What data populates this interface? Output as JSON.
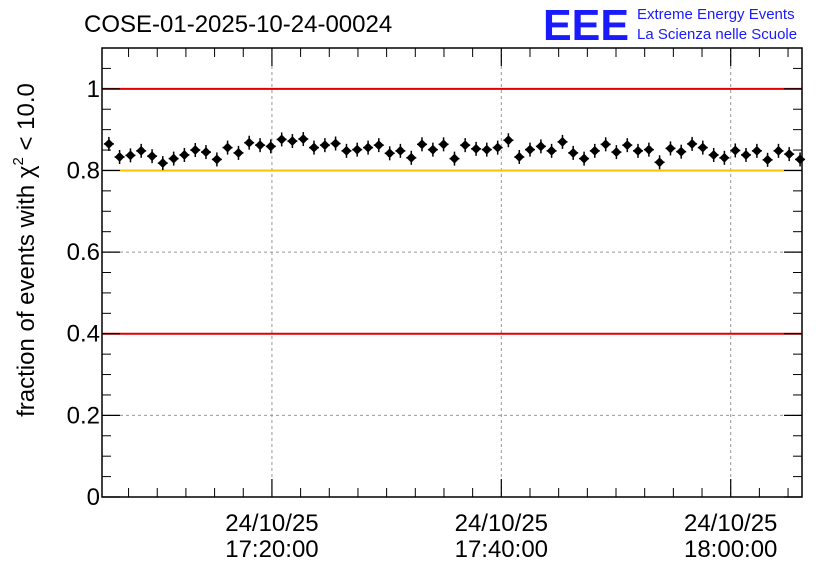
{
  "header": {
    "run_title": "COSE-01-2025-10-24-00024",
    "logo_letters": "EEE",
    "logo_line1": "Extreme Energy Events",
    "logo_line2": "La Scienza nelle Scuole"
  },
  "chart_data": {
    "type": "scatter",
    "title": "COSE-01-2025-10-24-00024",
    "ylabel_main": "fraction of events with χ",
    "ylabel_sup": "2",
    "ylabel_tail": " < 10.0",
    "ylim": [
      0,
      1.1
    ],
    "yticks": [
      0,
      0.2,
      0.4,
      0.6,
      0.8,
      1
    ],
    "ytick_labels": [
      "0",
      "0.2",
      "0.4",
      "0.6",
      "0.8",
      "1"
    ],
    "xlim": [
      "24/10/25 17:05:11",
      "24/10/25 18:06:13"
    ],
    "xticks": [
      {
        "time": "24/10/25 17:20:00",
        "line1": "24/10/25",
        "line2": "17:20:00"
      },
      {
        "time": "24/10/25 17:40:00",
        "line1": "24/10/25",
        "line2": "17:40:00"
      },
      {
        "time": "24/10/25 18:00:00",
        "line1": "24/10/25",
        "line2": "18:00:00"
      }
    ],
    "grid": true,
    "reference_lines": [
      {
        "y": 1.0,
        "color": "#e00000"
      },
      {
        "y": 0.8,
        "color": "#ffc000"
      },
      {
        "y": 0.4,
        "color": "#e00000"
      }
    ],
    "marker_color": "#000000",
    "series": [
      {
        "x": [
          "17:05:47",
          "17:06:43",
          "17:07:40",
          "17:08:36",
          "17:09:33",
          "17:10:29",
          "17:11:26",
          "17:12:22",
          "17:13:19",
          "17:14:15",
          "17:15:12",
          "17:16:08",
          "17:17:05",
          "17:18:01",
          "17:18:58",
          "17:19:54",
          "17:20:51",
          "17:21:47",
          "17:22:44",
          "17:23:40",
          "17:24:37",
          "17:25:33",
          "17:26:30",
          "17:27:26",
          "17:28:23",
          "17:29:19",
          "17:30:16",
          "17:31:12",
          "17:32:09",
          "17:33:05",
          "17:34:02",
          "17:34:58",
          "17:35:55",
          "17:36:51",
          "17:37:48",
          "17:38:44",
          "17:39:41",
          "17:40:37",
          "17:41:34",
          "17:42:30",
          "17:43:27",
          "17:44:23",
          "17:45:20",
          "17:46:16",
          "17:47:13",
          "17:48:09",
          "17:49:06",
          "17:50:02",
          "17:50:59",
          "17:51:55",
          "17:52:52",
          "17:53:48",
          "17:54:45",
          "17:55:41",
          "17:56:38",
          "17:57:34",
          "17:58:31",
          "17:59:27",
          "18:00:24",
          "18:01:20",
          "18:02:17",
          "18:03:13",
          "18:04:10",
          "18:05:06",
          "18:06:03"
        ],
        "y": [
          0.865,
          0.833,
          0.837,
          0.848,
          0.835,
          0.818,
          0.829,
          0.838,
          0.85,
          0.845,
          0.827,
          0.856,
          0.843,
          0.868,
          0.862,
          0.859,
          0.876,
          0.872,
          0.877,
          0.856,
          0.862,
          0.866,
          0.848,
          0.851,
          0.856,
          0.862,
          0.842,
          0.848,
          0.831,
          0.864,
          0.851,
          0.864,
          0.829,
          0.862,
          0.853,
          0.851,
          0.856,
          0.874,
          0.833,
          0.851,
          0.859,
          0.848,
          0.87,
          0.843,
          0.829,
          0.848,
          0.864,
          0.845,
          0.862,
          0.848,
          0.851,
          0.82,
          0.854,
          0.846,
          0.865,
          0.856,
          0.838,
          0.831,
          0.849,
          0.838,
          0.848,
          0.826,
          0.848,
          0.84,
          0.827
        ]
      }
    ]
  }
}
